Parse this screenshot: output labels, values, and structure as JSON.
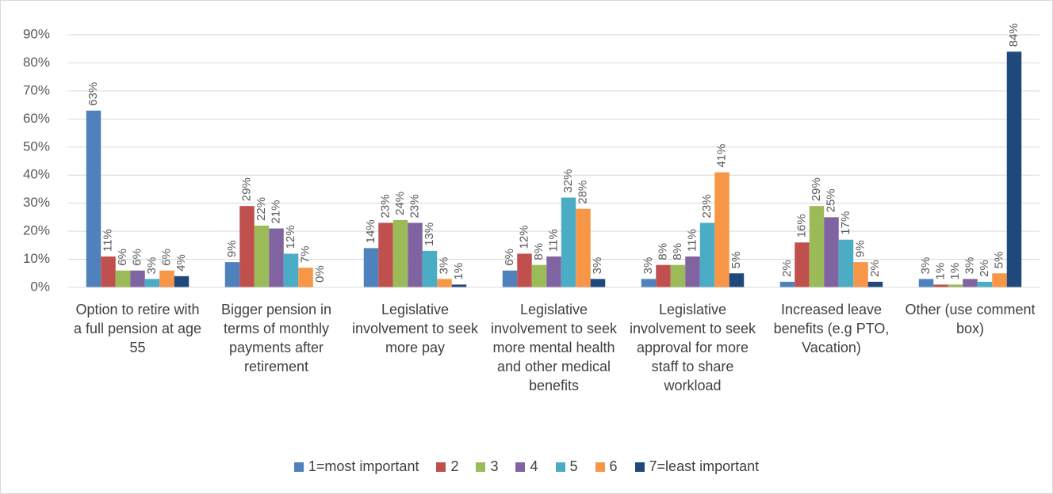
{
  "chart_data": {
    "type": "bar",
    "categories": [
      "Option to retire with a full pension at age 55",
      "Bigger pension in terms of monthly payments after retirement",
      "Legislative involvement to seek more pay",
      "Legislative involvement to seek more mental health and other medical benefits",
      "Legislative involvement to seek approval for more staff to share workload",
      "Increased leave benefits (e.g PTO, Vacation)",
      "Other (use comment box)"
    ],
    "series": [
      {
        "name": "1=most important",
        "color": "#4f81bd",
        "values": [
          63,
          9,
          14,
          6,
          3,
          2,
          3
        ],
        "value_labels": [
          "63%",
          "9%",
          "14%",
          "6%",
          "3%",
          "2%",
          "3%"
        ]
      },
      {
        "name": "2",
        "color": "#c0504d",
        "values": [
          11,
          29,
          23,
          12,
          8,
          16,
          1
        ],
        "value_labels": [
          "11%",
          "29%",
          "23%",
          "12%",
          "8%",
          "16%",
          "1%"
        ]
      },
      {
        "name": "3",
        "color": "#9bbb59",
        "values": [
          6,
          22,
          24,
          8,
          8,
          29,
          1
        ],
        "value_labels": [
          "6%",
          "22%",
          "24%",
          "8%",
          "8%",
          "29%",
          "1%"
        ]
      },
      {
        "name": "4",
        "color": "#8064a2",
        "values": [
          6,
          21,
          23,
          11,
          11,
          25,
          3
        ],
        "value_labels": [
          "6%",
          "21%",
          "23%",
          "11%",
          "11%",
          "25%",
          "3%"
        ]
      },
      {
        "name": "5",
        "color": "#4bacc6",
        "values": [
          3,
          12,
          13,
          32,
          23,
          17,
          2
        ],
        "value_labels": [
          "3%",
          "12%",
          "13%",
          "32%",
          "23%",
          "17%",
          "2%"
        ]
      },
      {
        "name": "6",
        "color": "#f79646",
        "values": [
          6,
          7,
          3,
          28,
          41,
          9,
          5
        ],
        "value_labels": [
          "6%",
          "7%",
          "3%",
          "28%",
          "41%",
          "9%",
          "5%"
        ]
      },
      {
        "name": "7=least important",
        "color": "#1f497d",
        "values": [
          4,
          0,
          1,
          3,
          5,
          2,
          84
        ],
        "value_labels": [
          "4%",
          "0%",
          "1%",
          "3%",
          "5%",
          "2%",
          "84%"
        ]
      }
    ],
    "ylim": [
      0,
      90
    ],
    "yticks": [
      {
        "value": 0,
        "label": "0%"
      },
      {
        "value": 10,
        "label": "10%"
      },
      {
        "value": 20,
        "label": "20%"
      },
      {
        "value": 30,
        "label": "30%"
      },
      {
        "value": 40,
        "label": "40%"
      },
      {
        "value": 50,
        "label": "50%"
      },
      {
        "value": 60,
        "label": "60%"
      },
      {
        "value": 70,
        "label": "70%"
      },
      {
        "value": 80,
        "label": "80%"
      },
      {
        "value": 90,
        "label": "90%"
      }
    ],
    "grid": true,
    "legend": "bottom"
  }
}
